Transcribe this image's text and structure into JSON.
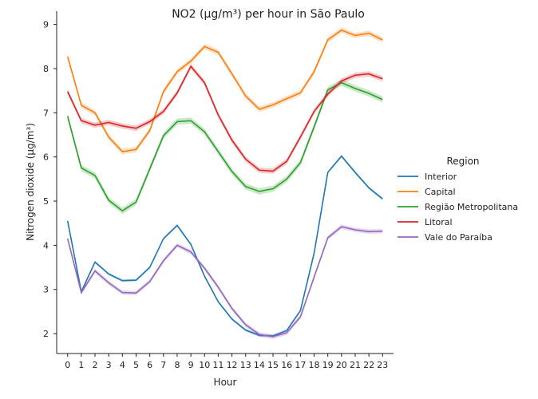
{
  "chart_data": {
    "type": "line",
    "title": "NO2 (µg/m³) per hour in São Paulo",
    "xlabel": "Hour",
    "ylabel": "Nitrogen dioxide (µg/m³)",
    "x": [
      0,
      1,
      2,
      3,
      4,
      5,
      6,
      7,
      8,
      9,
      10,
      11,
      12,
      13,
      14,
      15,
      16,
      17,
      18,
      19,
      20,
      21,
      22,
      23
    ],
    "xlim": [
      -0.8,
      23.8
    ],
    "ylim": [
      1.55,
      9.3
    ],
    "yticks": [
      2,
      3,
      4,
      5,
      6,
      7,
      8,
      9
    ],
    "grid": false,
    "legend": {
      "title": "Region",
      "placement": "right"
    },
    "series": [
      {
        "name": "Interior",
        "color": "#1f77b4",
        "band": 0.03,
        "values": [
          4.55,
          2.95,
          3.62,
          3.35,
          3.2,
          3.21,
          3.5,
          4.15,
          4.45,
          4.02,
          3.3,
          2.72,
          2.33,
          2.08,
          1.96,
          1.95,
          2.07,
          2.52,
          3.82,
          5.65,
          6.02,
          5.65,
          5.3,
          5.05
        ]
      },
      {
        "name": "Capital",
        "color": "#ff7f0e",
        "band": 0.06,
        "values": [
          8.27,
          7.17,
          7.0,
          6.45,
          6.12,
          6.17,
          6.6,
          7.48,
          7.93,
          8.17,
          8.5,
          8.37,
          7.88,
          7.38,
          7.08,
          7.18,
          7.32,
          7.45,
          7.93,
          8.65,
          8.87,
          8.75,
          8.8,
          8.65
        ]
      },
      {
        "name": "Região Metropolitana",
        "color": "#2ca02c",
        "band": 0.07,
        "values": [
          6.92,
          5.75,
          5.58,
          5.02,
          4.78,
          4.98,
          5.73,
          6.48,
          6.8,
          6.82,
          6.57,
          6.12,
          5.67,
          5.33,
          5.22,
          5.28,
          5.5,
          5.87,
          6.68,
          7.52,
          7.68,
          7.55,
          7.44,
          7.3
        ]
      },
      {
        "name": "Litoral",
        "color": "#d62728",
        "band": 0.06,
        "values": [
          7.48,
          6.82,
          6.72,
          6.78,
          6.7,
          6.65,
          6.8,
          7.03,
          7.45,
          8.05,
          7.68,
          6.95,
          6.38,
          5.95,
          5.7,
          5.68,
          5.9,
          6.45,
          7.03,
          7.42,
          7.72,
          7.85,
          7.88,
          7.77
        ]
      },
      {
        "name": "Vale do Paraíba",
        "color": "#9467bd",
        "band": 0.05,
        "values": [
          4.15,
          2.93,
          3.42,
          3.15,
          2.93,
          2.92,
          3.18,
          3.65,
          4.0,
          3.85,
          3.48,
          3.05,
          2.57,
          2.2,
          1.98,
          1.93,
          2.02,
          2.38,
          3.28,
          4.17,
          4.42,
          4.35,
          4.31,
          4.32
        ]
      }
    ]
  }
}
